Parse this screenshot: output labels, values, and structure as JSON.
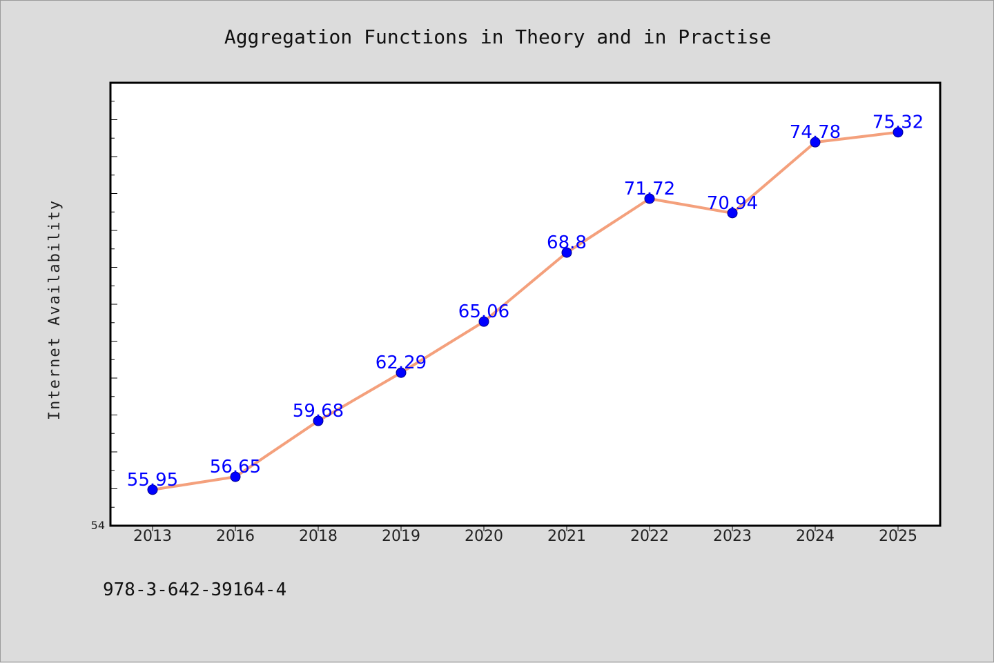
{
  "chart_data": {
    "type": "line",
    "title": "Aggregation Functions in Theory and in Practise",
    "xlabel": "",
    "ylabel": "Internet Availability",
    "categories": [
      "2013",
      "2016",
      "2018",
      "2019",
      "2020",
      "2021",
      "2022",
      "2023",
      "2024",
      "2025"
    ],
    "series": [
      {
        "values": [
          55.95,
          56.65,
          59.68,
          62.29,
          65.06,
          68.8,
          71.72,
          70.94,
          74.78,
          75.32
        ],
        "labels": [
          "55.95",
          "56.65",
          "59.68",
          "62.29",
          "65.06",
          "68.8",
          "71.72",
          "70.94",
          "74.78",
          "75.32"
        ],
        "line_color": "#f4a07c",
        "marker_color": "#0000ff"
      }
    ],
    "ylim": [
      54,
      78
    ],
    "y_tick_labels": [
      "54"
    ],
    "grid": false,
    "legend": "none"
  },
  "footer": {
    "isbn": "978-3-642-39164-4"
  },
  "colors": {
    "background": "#dcdcdc",
    "plot_background": "#ffffff",
    "line": "#f4a07c",
    "marker": "#0000ff",
    "data_label": "#0000ff"
  }
}
